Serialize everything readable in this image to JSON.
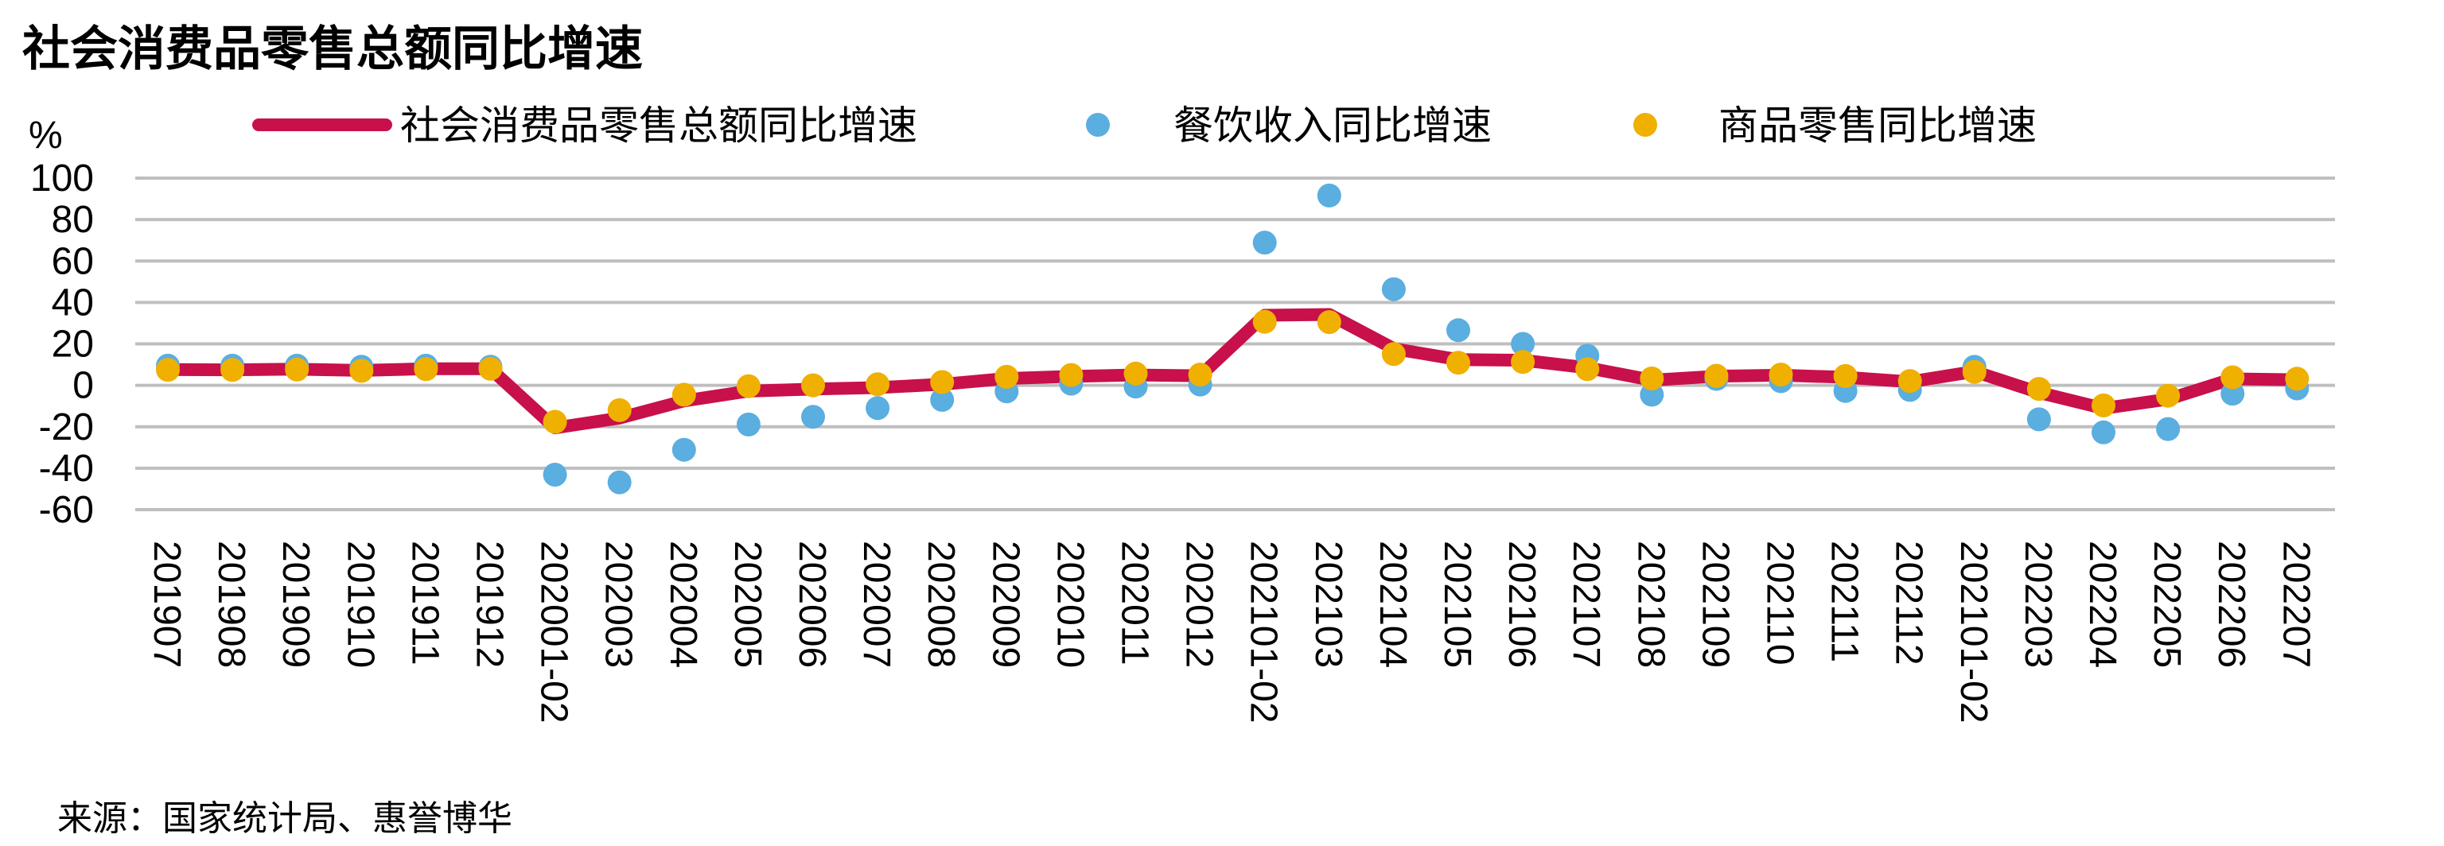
{
  "chart_data": {
    "type": "line",
    "title": "社会消费品零售总额同比增速",
    "y_unit": "%",
    "ylim": [
      -60,
      100
    ],
    "yticks": [
      100,
      80,
      60,
      40,
      20,
      0,
      -20,
      -40,
      -60
    ],
    "ytick_labels": [
      "100",
      "80",
      "60",
      "40",
      "20",
      "0",
      "-20",
      "-40",
      "-60"
    ],
    "grid": true,
    "legend_position": "top",
    "categories": [
      "201907",
      "201908",
      "201909",
      "201910",
      "201911",
      "201912",
      "202001-02",
      "202003",
      "202004",
      "202005",
      "202006",
      "202007",
      "202008",
      "202009",
      "202010",
      "202011",
      "202012",
      "202101-02",
      "202103",
      "202104",
      "202105",
      "202106",
      "202107",
      "202108",
      "202109",
      "202110",
      "202111",
      "202112",
      "202101-02",
      "202203",
      "202204",
      "202205",
      "202206",
      "202207"
    ],
    "series": [
      {
        "name": "社会消费品零售总额同比增速",
        "style": "line",
        "color": "#c8104a",
        "values": [
          7.6,
          7.5,
          7.8,
          7.2,
          8.0,
          8.0,
          -20.5,
          -15.8,
          -7.5,
          -2.8,
          -1.8,
          -1.1,
          0.5,
          3.3,
          4.3,
          5.0,
          4.6,
          33.8,
          34.2,
          17.7,
          12.4,
          12.1,
          8.5,
          2.5,
          4.4,
          4.9,
          3.9,
          1.7,
          6.7,
          -3.5,
          -11.1,
          -6.7,
          3.1,
          2.7
        ]
      },
      {
        "name": "餐饮收入同比增速",
        "style": "scatter",
        "color": "#5aaee0",
        "values": [
          9.5,
          9.5,
          9.5,
          9.0,
          9.5,
          9.0,
          -43.1,
          -46.8,
          -31.1,
          -18.9,
          -15.2,
          -11.0,
          -7.0,
          -2.9,
          0.8,
          -0.6,
          0.4,
          68.9,
          91.6,
          46.4,
          26.6,
          20.0,
          14.3,
          -4.5,
          3.1,
          2.0,
          -2.7,
          -2.2,
          8.9,
          -16.4,
          -22.7,
          -21.1,
          -4.0,
          -1.5
        ]
      },
      {
        "name": "商品零售同比增速",
        "style": "scatter",
        "color": "#f0b000",
        "values": [
          7.5,
          7.4,
          7.6,
          7.0,
          7.8,
          8.0,
          -17.6,
          -12.0,
          -4.5,
          -0.4,
          0.0,
          0.5,
          1.6,
          4.1,
          5.0,
          5.7,
          5.2,
          30.7,
          30.5,
          15.1,
          10.9,
          11.3,
          7.8,
          3.3,
          4.6,
          5.2,
          4.5,
          2.1,
          6.5,
          -1.7,
          -9.7,
          -5.0,
          3.9,
          3.2
        ]
      }
    ]
  },
  "source_text": "来源：国家统计局、惠誉博华"
}
